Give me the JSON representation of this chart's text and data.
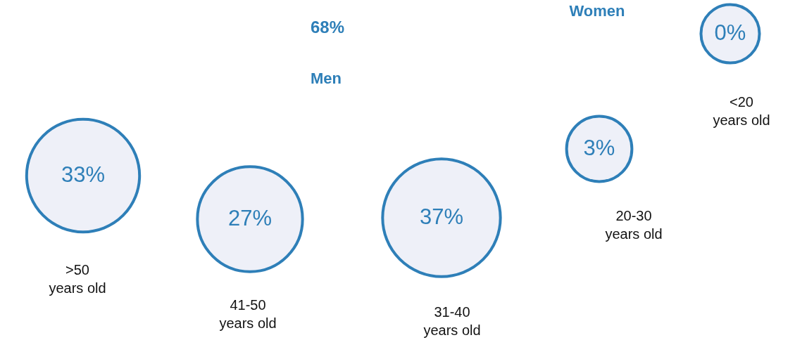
{
  "chart_data": {
    "type": "other",
    "categories": [
      ">50\nyears old",
      "41-50\nyears old",
      "31-40\nyears old",
      "20-30\nyears old",
      "<20\nyears old"
    ],
    "values": [
      33,
      27,
      37,
      3,
      0
    ],
    "value_labels": [
      "33%",
      "27%",
      "37%",
      "3%",
      "0%"
    ],
    "color": "#2e7fb8",
    "annotations": [
      "68%",
      "Men",
      "Women"
    ]
  }
}
